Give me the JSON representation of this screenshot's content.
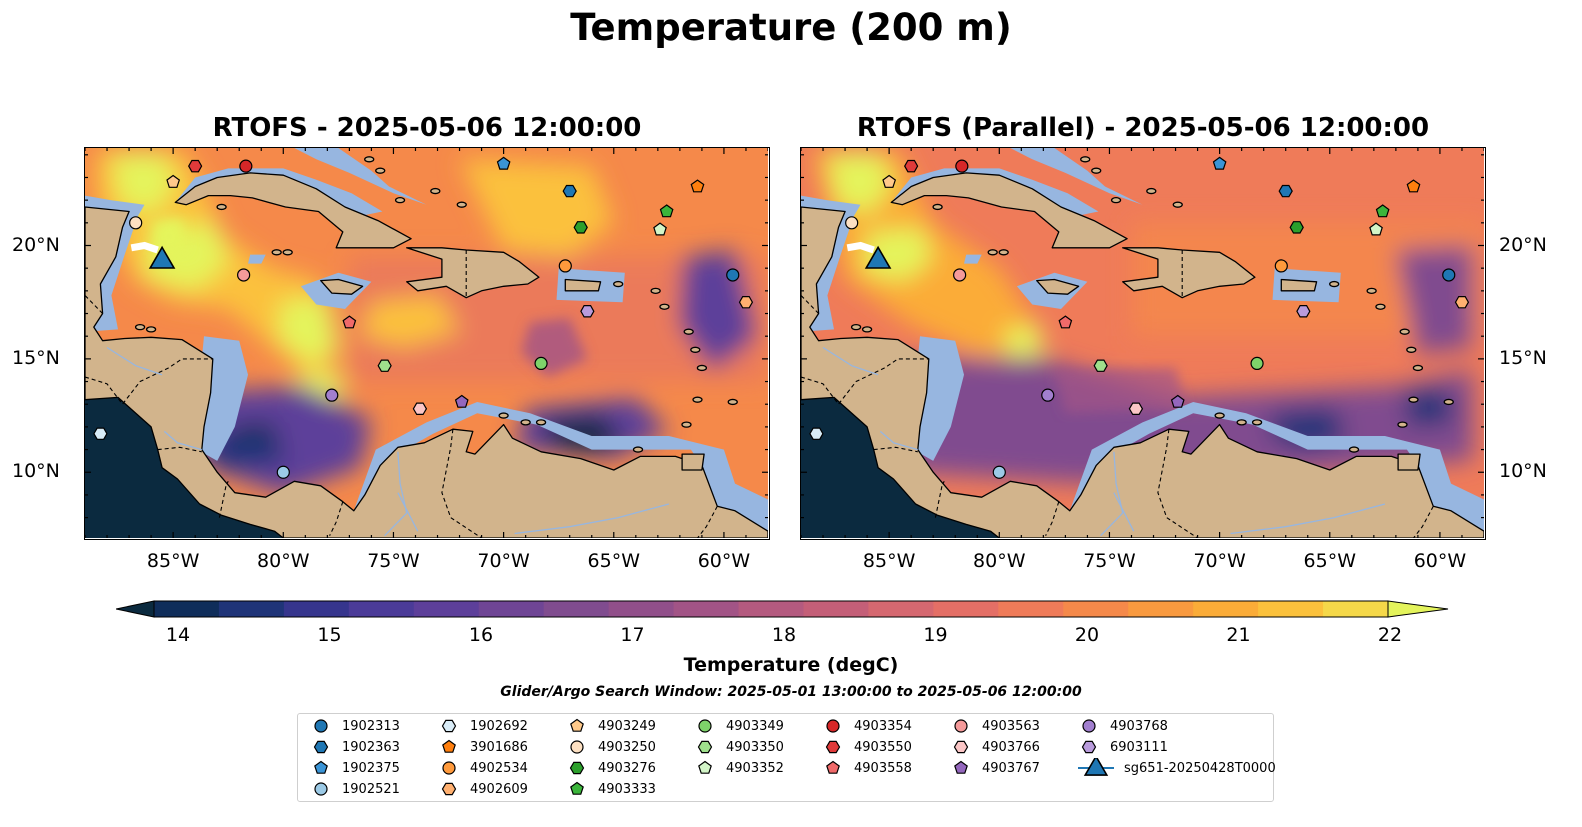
{
  "title": "Temperature (200 m)",
  "panels": [
    {
      "id": "rtofs",
      "title": "RTOFS - 2025-05-06 12:00:00"
    },
    {
      "id": "rtofs-parallel",
      "title": "RTOFS (Parallel) - 2025-05-06 12:00:00"
    }
  ],
  "axes": {
    "lon_range": [
      -89,
      -58
    ],
    "lat_range": [
      7.1,
      24.3
    ],
    "x_ticks": [
      {
        "value": -85,
        "label": "85°W"
      },
      {
        "value": -80,
        "label": "80°W"
      },
      {
        "value": -75,
        "label": "75°W"
      },
      {
        "value": -70,
        "label": "70°W"
      },
      {
        "value": -65,
        "label": "65°W"
      },
      {
        "value": -60,
        "label": "60°W"
      }
    ],
    "y_ticks": [
      {
        "value": 20,
        "label": "20°N"
      },
      {
        "value": 15,
        "label": "15°N"
      },
      {
        "value": 10,
        "label": "10°N"
      }
    ]
  },
  "colorbar": {
    "label": "Temperature (degC)",
    "min": 14,
    "max": 22,
    "step": 0.5,
    "extend": "both",
    "ticks": [
      "14",
      "15",
      "16",
      "17",
      "18",
      "19",
      "20",
      "21",
      "22"
    ],
    "colors": [
      "#0b2a3f",
      "#0f2d5a",
      "#1f3478",
      "#36358d",
      "#4b3b98",
      "#5d3f9a",
      "#6f4595",
      "#804c8f",
      "#914f8a",
      "#a25486",
      "#b45a7f",
      "#c45f78",
      "#d56870",
      "#e46f66",
      "#ef7b59",
      "#f5894a",
      "#f99a3f",
      "#fbac38",
      "#fbc13c",
      "#f5d849",
      "#e4f45c"
    ]
  },
  "map_colors": {
    "land": "#d2b48c",
    "shelf": "#97b6e0",
    "deep_cold": "#0b2a3f",
    "ocean_warm": "#f0884c"
  },
  "search_window": "Glider/Argo Search Window: 2025-05-01 13:00:00 to 2025-05-06 12:00:00",
  "legend": [
    {
      "id": "1902313",
      "marker": "circle",
      "color": "#1f77b4"
    },
    {
      "id": "1902363",
      "marker": "hexagon",
      "color": "#1f77b4"
    },
    {
      "id": "1902375",
      "marker": "pentagon",
      "color": "#3a94d6"
    },
    {
      "id": "1902521",
      "marker": "circle",
      "color": "#9ccae6"
    },
    {
      "id": "1902692",
      "marker": "hexagon",
      "color": "#d9ecf7"
    },
    {
      "id": "3901686",
      "marker": "pentagon",
      "color": "#ff7f0e"
    },
    {
      "id": "4902534",
      "marker": "circle",
      "color": "#ff9a3c"
    },
    {
      "id": "4902609",
      "marker": "hexagon",
      "color": "#ffb070"
    },
    {
      "id": "4903249",
      "marker": "pentagon",
      "color": "#ffc98a"
    },
    {
      "id": "4903250",
      "marker": "circle",
      "color": "#fde0c2"
    },
    {
      "id": "4903276",
      "marker": "hexagon",
      "color": "#2ca02c"
    },
    {
      "id": "4903333",
      "marker": "pentagon",
      "color": "#3bb53b"
    },
    {
      "id": "4903349",
      "marker": "circle",
      "color": "#7ed36a"
    },
    {
      "id": "4903350",
      "marker": "hexagon",
      "color": "#9fe08c"
    },
    {
      "id": "4903352",
      "marker": "pentagon",
      "color": "#d3f5c8"
    },
    {
      "id": "4903354",
      "marker": "circle",
      "color": "#d62728"
    },
    {
      "id": "4903550",
      "marker": "hexagon",
      "color": "#e03a3a"
    },
    {
      "id": "4903558",
      "marker": "pentagon",
      "color": "#f06a6a"
    },
    {
      "id": "4903563",
      "marker": "circle",
      "color": "#f59a9a"
    },
    {
      "id": "4903766",
      "marker": "hexagon",
      "color": "#fbc6c6"
    },
    {
      "id": "4903767",
      "marker": "pentagon",
      "color": "#9467bd"
    },
    {
      "id": "4903768",
      "marker": "circle",
      "color": "#a27fcf"
    },
    {
      "id": "6903111",
      "marker": "hexagon",
      "color": "#b99bdc"
    },
    {
      "id": "sg651-20250428T0000",
      "marker": "triangle",
      "color": "#1f77b4"
    }
  ],
  "floats": [
    {
      "marker": "hexagon",
      "color": "#d9ecf7",
      "lon": -88.3,
      "lat": 11.7
    },
    {
      "marker": "hexagon",
      "color": "#e03a3a",
      "lon": -84.0,
      "lat": 23.5
    },
    {
      "marker": "circle",
      "color": "#d62728",
      "lon": -81.7,
      "lat": 23.5
    },
    {
      "marker": "pentagon",
      "color": "#ffc98a",
      "lon": -85.0,
      "lat": 22.8
    },
    {
      "marker": "circle",
      "color": "#fde0c2",
      "lon": -86.7,
      "lat": 21.0
    },
    {
      "marker": "circle",
      "color": "#f59a9a",
      "lon": -81.8,
      "lat": 18.7
    },
    {
      "marker": "pentagon",
      "color": "#3a94d6",
      "lon": -70.0,
      "lat": 23.6
    },
    {
      "marker": "hexagon",
      "color": "#1f77b4",
      "lon": -67.0,
      "lat": 22.4
    },
    {
      "marker": "pentagon",
      "color": "#ff7f0e",
      "lon": -61.2,
      "lat": 22.6
    },
    {
      "marker": "pentagon",
      "color": "#3bb53b",
      "lon": -62.6,
      "lat": 21.5
    },
    {
      "marker": "pentagon",
      "color": "#d3f5c8",
      "lon": -62.9,
      "lat": 20.7
    },
    {
      "marker": "hexagon",
      "color": "#2ca02c",
      "lon": -66.5,
      "lat": 20.8
    },
    {
      "marker": "circle",
      "color": "#ff9a3c",
      "lon": -67.2,
      "lat": 19.1
    },
    {
      "marker": "circle",
      "color": "#1f77b4",
      "lon": -59.6,
      "lat": 18.7
    },
    {
      "marker": "hexagon",
      "color": "#ffb070",
      "lon": -59.0,
      "lat": 17.5
    },
    {
      "marker": "hexagon",
      "color": "#b99bdc",
      "lon": -66.2,
      "lat": 17.1
    },
    {
      "marker": "pentagon",
      "color": "#f06a6a",
      "lon": -77.0,
      "lat": 16.6
    },
    {
      "marker": "hexagon",
      "color": "#9fe08c",
      "lon": -75.4,
      "lat": 14.7
    },
    {
      "marker": "circle",
      "color": "#7ed36a",
      "lon": -68.3,
      "lat": 14.8
    },
    {
      "marker": "circle",
      "color": "#a27fcf",
      "lon": -77.8,
      "lat": 13.4
    },
    {
      "marker": "hexagon",
      "color": "#fbc6c6",
      "lon": -73.8,
      "lat": 12.8
    },
    {
      "marker": "pentagon",
      "color": "#9467bd",
      "lon": -71.9,
      "lat": 13.1
    },
    {
      "marker": "circle",
      "color": "#9ccae6",
      "lon": -80.0,
      "lat": 10.0
    }
  ],
  "glider": {
    "label": "sg651-20250428T0000",
    "lon": -85.5,
    "lat": 19.4,
    "color": "#1f77b4",
    "track": [
      [
        -86.9,
        19.9
      ],
      [
        -86.3,
        20.0
      ],
      [
        -85.7,
        19.8
      ]
    ]
  }
}
